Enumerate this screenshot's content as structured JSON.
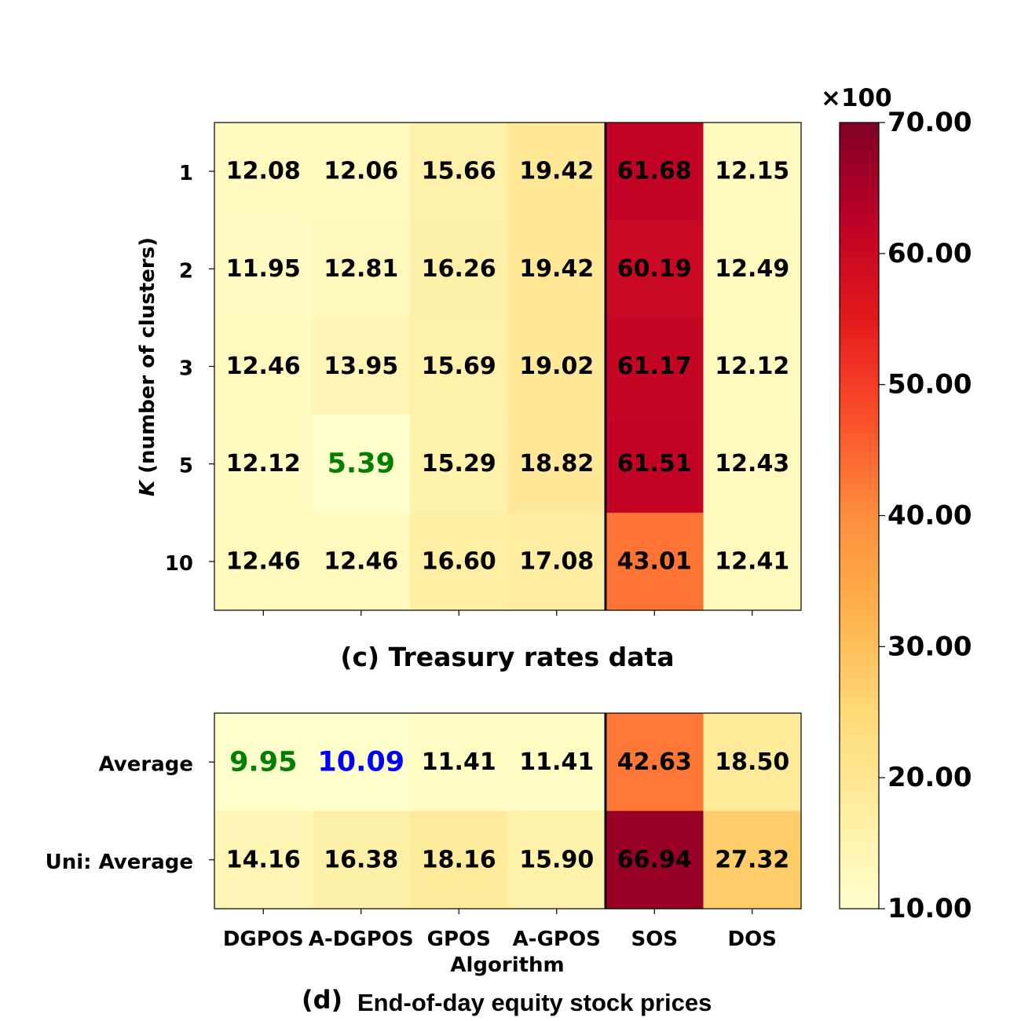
{
  "chart_data": [
    {
      "type": "heatmap",
      "title": "(c) Treasury rates data",
      "ylabel_italic": "K",
      "ylabel_rest": " (number of clusters)",
      "columns": [
        "DGPOS",
        "A-DGPOS",
        "GPOS",
        "A-GPOS",
        "SOS",
        "DOS"
      ],
      "rows": [
        "1",
        "2",
        "3",
        "5",
        "10"
      ],
      "values": [
        [
          12.08,
          12.06,
          15.66,
          19.42,
          61.68,
          12.15
        ],
        [
          11.95,
          12.81,
          16.26,
          19.42,
          60.19,
          12.49
        ],
        [
          12.46,
          13.95,
          15.69,
          19.02,
          61.17,
          12.12
        ],
        [
          12.12,
          5.39,
          15.29,
          18.82,
          61.51,
          12.43
        ],
        [
          12.46,
          12.46,
          16.6,
          17.08,
          43.01,
          12.41
        ]
      ],
      "labels": [
        [
          "12.08",
          "12.06",
          "15.66",
          "19.42",
          "61.68",
          "12.15"
        ],
        [
          "11.95",
          "12.81",
          "16.26",
          "19.42",
          "60.19",
          "12.49"
        ],
        [
          "12.46",
          "13.95",
          "15.69",
          "19.02",
          "61.17",
          "12.12"
        ],
        [
          "12.12",
          "5.39",
          "15.29",
          "18.82",
          "61.51",
          "12.43"
        ],
        [
          "12.46",
          "12.46",
          "16.60",
          "17.08",
          "43.01",
          "12.41"
        ]
      ],
      "highlights": [
        {
          "row": 3,
          "col": 1,
          "color": "#008000",
          "emphasis": "large"
        }
      ],
      "separator_after_column": 3
    },
    {
      "type": "heatmap",
      "title_prefix": "(d)",
      "title_text": "End-of-day equity stock prices",
      "xlabel": "Algorithm",
      "columns": [
        "DGPOS",
        "A-DGPOS",
        "GPOS",
        "A-GPOS",
        "SOS",
        "DOS"
      ],
      "rows": [
        "Average",
        "Uni: Average"
      ],
      "values": [
        [
          9.95,
          10.09,
          11.41,
          11.41,
          42.63,
          18.5
        ],
        [
          14.16,
          16.38,
          18.16,
          15.9,
          66.94,
          27.32
        ]
      ],
      "labels": [
        [
          "9.95",
          "10.09",
          "11.41",
          "11.41",
          "42.63",
          "18.50"
        ],
        [
          "14.16",
          "16.38",
          "18.16",
          "15.90",
          "66.94",
          "27.32"
        ]
      ],
      "highlights": [
        {
          "row": 0,
          "col": 0,
          "color": "#008000",
          "emphasis": "large"
        },
        {
          "row": 0,
          "col": 1,
          "color": "#0000ff",
          "emphasis": "large"
        }
      ],
      "separator_after_column": 3
    }
  ],
  "colorbar": {
    "colormap": "YlOrRd",
    "min": 10,
    "max": 70,
    "multiplier_label": "×100",
    "ticks": [
      {
        "value": 10,
        "label": "10.00"
      },
      {
        "value": 20,
        "label": "20.00"
      },
      {
        "value": 30,
        "label": "30.00"
      },
      {
        "value": 40,
        "label": "40.00"
      },
      {
        "value": 50,
        "label": "50.00"
      },
      {
        "value": 60,
        "label": "60.00"
      },
      {
        "value": 70,
        "label": "70.00"
      }
    ]
  }
}
